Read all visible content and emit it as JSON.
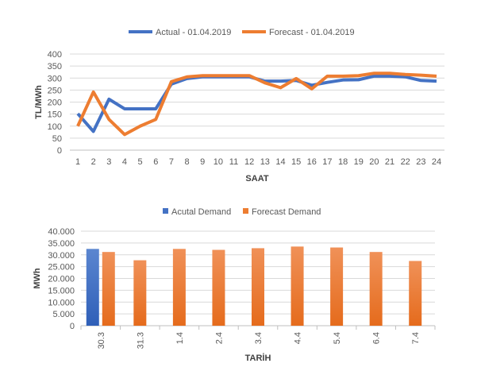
{
  "chart_data": [
    {
      "type": "line",
      "xlabel": "SAAT",
      "ylabel": "TL/MWh",
      "ylim": [
        0,
        400
      ],
      "yticks": [
        0,
        50,
        100,
        150,
        200,
        250,
        300,
        350,
        400
      ],
      "x": [
        1,
        2,
        3,
        4,
        5,
        6,
        7,
        8,
        9,
        10,
        11,
        12,
        13,
        14,
        15,
        16,
        17,
        18,
        19,
        20,
        21,
        22,
        23,
        24
      ],
      "legend_position": "top",
      "series": [
        {
          "name": "Actual - 01.04.2019",
          "color": "#4472C4",
          "values": [
            152,
            78,
            212,
            172,
            172,
            172,
            275,
            298,
            305,
            305,
            305,
            305,
            287,
            287,
            290,
            270,
            282,
            292,
            293,
            308,
            308,
            305,
            290,
            287
          ]
        },
        {
          "name": "Forecast - 01.04.2019",
          "color": "#ED7D31",
          "values": [
            100,
            242,
            128,
            65,
            100,
            128,
            285,
            305,
            310,
            310,
            310,
            310,
            280,
            260,
            298,
            255,
            308,
            308,
            310,
            320,
            320,
            315,
            312,
            308
          ]
        }
      ]
    },
    {
      "type": "bar",
      "xlabel": "TARİH",
      "ylabel": "MWh",
      "ylim": [
        0,
        40000
      ],
      "yticks": [
        "0",
        "5.000",
        "10.000",
        "15.000",
        "20.000",
        "25.000",
        "30.000",
        "35.000",
        "40.000"
      ],
      "categories": [
        "30.3",
        "31.3",
        "1.4",
        "2.4",
        "3.4",
        "4.4",
        "5.4",
        "6.4",
        "7.4"
      ],
      "legend_position": "top",
      "series": [
        {
          "name": "Acutal Demand",
          "color": "#4472C4",
          "values": [
            32500,
            null,
            null,
            null,
            null,
            null,
            null,
            null,
            null
          ]
        },
        {
          "name": "Forecast Demand",
          "color": "#ED7D31",
          "values": [
            31200,
            27700,
            32500,
            32100,
            32800,
            33500,
            33100,
            31200,
            27400
          ]
        }
      ]
    }
  ]
}
